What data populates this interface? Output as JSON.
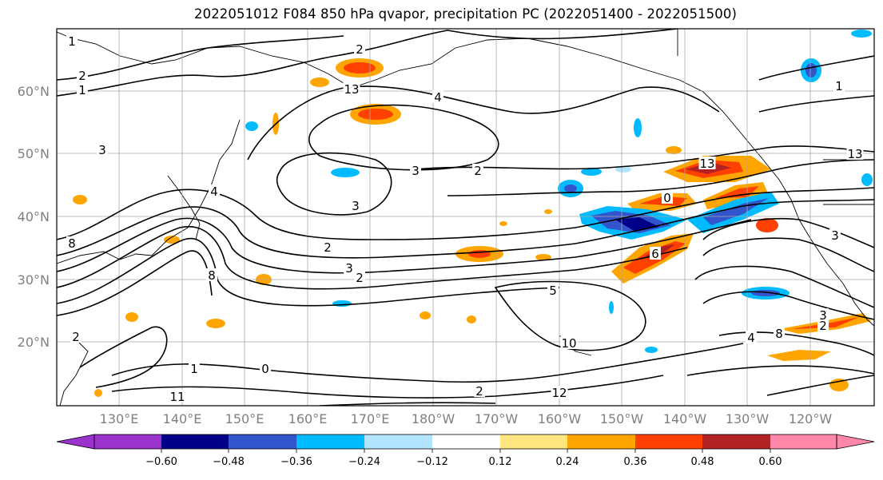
{
  "title": "2022051012 F084 850 hPa qvapor, precipitation PC (2022051400 - 2022051500)",
  "lat_labels": [
    "60°N",
    "50°N",
    "40°N",
    "30°N",
    "20°N"
  ],
  "lon_labels": [
    "130°E",
    "140°E",
    "150°E",
    "160°E",
    "170°E",
    "180°W",
    "170°W",
    "160°W",
    "150°W",
    "140°W",
    "130°W",
    "120°W"
  ],
  "contour_labels": [
    "1",
    "2",
    "1",
    "2",
    "4",
    "3",
    "2",
    "3",
    "3",
    "2",
    "4",
    "3",
    "2",
    "6",
    "5",
    "8",
    "8",
    "2",
    "1",
    "0",
    "11",
    "12",
    "13",
    "10",
    "13",
    "13",
    "4",
    "8",
    "0",
    "3",
    "2",
    "3",
    "1",
    "2"
  ],
  "colorbar": {
    "ticks": [
      "−0.60",
      "−0.48",
      "−0.36",
      "−0.24",
      "−0.12",
      "0.12",
      "0.24",
      "0.36",
      "0.48",
      "0.60"
    ],
    "colors": [
      "#9933cc",
      "#000088",
      "#3355cc",
      "#00bbff",
      "#b3e5ff",
      "#ffffff",
      "#ffe680",
      "#ffa500",
      "#ff4000",
      "#b22222",
      "#ff88aa"
    ]
  },
  "colors": {
    "axis_label": "#808080",
    "grid": "#a8a8a8",
    "contour": "#000000"
  }
}
